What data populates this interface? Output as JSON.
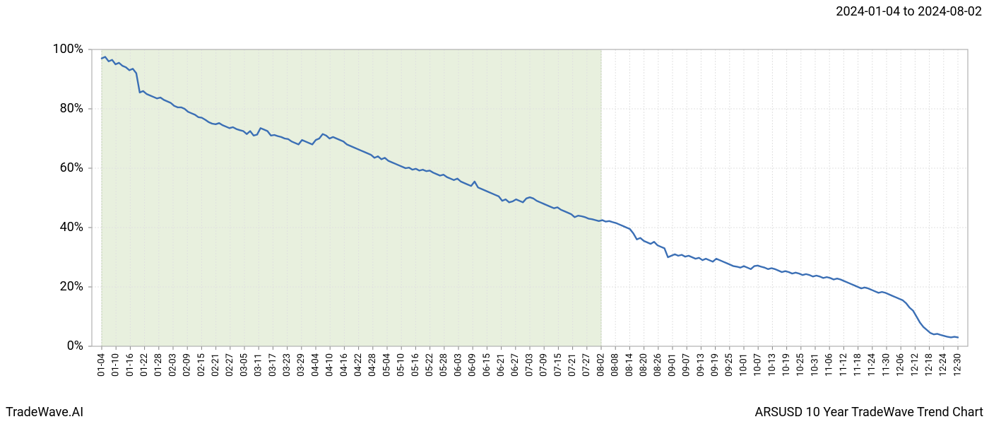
{
  "header": {
    "date_range": "2024-01-04 to 2024-08-02"
  },
  "footer": {
    "brand": "TradeWave.AI",
    "chart_title": "ARSUSD 10 Year TradeWave Trend Chart"
  },
  "chart": {
    "type": "line",
    "background_color": "#ffffff",
    "plot_border_color": "#b0b0b0",
    "grid_color": "#e0e0e0",
    "grid_dash": "2,2",
    "highlight": {
      "fill": "#e8f0de",
      "stroke": "#c0d0b0",
      "start_label": "01-04",
      "end_label": "08-02"
    },
    "line": {
      "color": "#3b6fb5",
      "width": 2.4
    },
    "y_axis": {
      "min": 0,
      "max": 100,
      "ticks": [
        0,
        20,
        40,
        60,
        80,
        100
      ],
      "tick_labels": [
        "0%",
        "20%",
        "40%",
        "60%",
        "80%",
        "100%"
      ],
      "label_fontsize": 18,
      "label_color": "#000000"
    },
    "x_axis": {
      "tick_labels": [
        "01-04",
        "01-10",
        "01-16",
        "01-22",
        "01-28",
        "02-03",
        "02-09",
        "02-15",
        "02-21",
        "02-27",
        "03-05",
        "03-11",
        "03-17",
        "03-23",
        "03-29",
        "04-04",
        "04-10",
        "04-16",
        "04-22",
        "04-28",
        "05-04",
        "05-10",
        "05-16",
        "05-22",
        "05-28",
        "06-03",
        "06-09",
        "06-15",
        "06-21",
        "06-27",
        "07-03",
        "07-09",
        "07-15",
        "07-21",
        "07-27",
        "08-02",
        "08-08",
        "08-14",
        "08-20",
        "08-26",
        "09-01",
        "09-07",
        "09-13",
        "09-19",
        "09-25",
        "10-01",
        "10-07",
        "10-13",
        "10-19",
        "10-25",
        "10-31",
        "11-06",
        "11-12",
        "11-18",
        "11-24",
        "11-30",
        "12-06",
        "12-12",
        "12-18",
        "12-24",
        "12-30"
      ],
      "label_fontsize": 13,
      "label_rotation": -90,
      "label_color": "#000000"
    },
    "series": {
      "values": [
        97,
        97.5,
        96,
        96.5,
        95,
        95.5,
        94.5,
        94,
        93,
        93.5,
        92,
        85.5,
        86,
        85,
        84.5,
        84,
        83.5,
        83.8,
        83,
        82.5,
        82,
        81,
        80.5,
        80.5,
        80,
        79,
        78.5,
        78,
        77.2,
        77,
        76.3,
        75.5,
        75,
        74.8,
        75.2,
        74.5,
        74,
        73.5,
        73.8,
        73.2,
        72.8,
        72.5,
        71.5,
        72.5,
        71,
        71.3,
        73.5,
        73,
        72.5,
        71,
        71.2,
        70.8,
        70.5,
        70,
        69.8,
        69,
        68.5,
        68,
        69.5,
        69,
        68.5,
        68,
        69.5,
        70,
        71.5,
        71,
        70,
        70.5,
        70,
        69.5,
        69,
        68,
        67.5,
        67,
        66.5,
        66,
        65.5,
        65,
        64.5,
        63.5,
        64,
        63,
        63.5,
        62.5,
        62,
        61.5,
        61,
        60.5,
        60,
        60.2,
        59.5,
        59.8,
        59.2,
        59.5,
        59,
        59.2,
        58.5,
        58,
        57.5,
        57.8,
        57,
        56.5,
        56,
        56.5,
        55.5,
        55,
        54.5,
        54,
        55.5,
        53.5,
        53,
        52.5,
        52,
        51.5,
        51,
        50.5,
        49,
        49.5,
        48.5,
        48.8,
        49.5,
        49,
        48.5,
        49.8,
        50.2,
        49.8,
        49,
        48.5,
        48,
        47.5,
        47,
        46.5,
        46.8,
        46,
        45.5,
        45,
        44.5,
        43.5,
        44,
        43.8,
        43.5,
        43,
        42.8,
        42.5,
        42.2,
        42.5,
        42,
        42.2,
        41.8,
        41.5,
        41,
        40.5,
        40,
        39.5,
        38,
        36,
        36.5,
        35.5,
        35,
        34.5,
        35.2,
        34,
        33.5,
        33,
        30,
        30.5,
        31,
        30.5,
        30.8,
        30.2,
        30.5,
        30,
        29.5,
        29.8,
        29,
        29.5,
        29,
        28.5,
        29.5,
        29,
        28.5,
        28,
        27.5,
        27,
        26.8,
        26.5,
        27,
        26.5,
        26,
        27,
        27.2,
        26.8,
        26.5,
        26,
        26.3,
        26,
        25.5,
        25,
        25.3,
        25,
        24.5,
        24.8,
        24.5,
        24,
        24.3,
        24,
        23.5,
        23.8,
        23.5,
        23,
        23.3,
        23,
        22.5,
        22.8,
        22.5,
        22,
        21.5,
        21,
        20.5,
        20,
        19.5,
        19.8,
        19.5,
        19,
        18.5,
        18,
        18.3,
        18,
        17.5,
        17,
        16.5,
        16,
        15.5,
        14.5,
        13,
        12,
        10,
        8,
        6.5,
        5.5,
        4.5,
        4,
        4.2,
        3.8,
        3.5,
        3.2,
        3,
        3.2,
        3
      ]
    }
  }
}
